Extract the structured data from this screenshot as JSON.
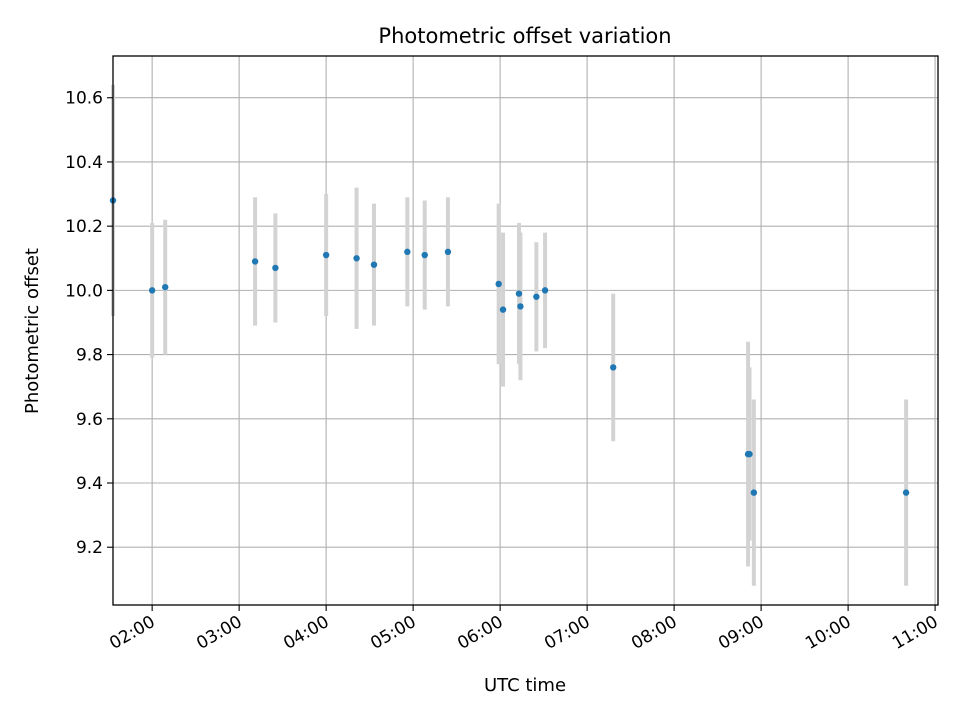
{
  "chart_data": {
    "type": "scatter",
    "title": "Photometric offset variation",
    "xlabel": "UTC time",
    "ylabel": "Photometric offset",
    "x_unit": "UTC time of day (HH:MM)",
    "xlim": [
      "01:33",
      "11:02"
    ],
    "ylim": [
      9.02,
      10.73
    ],
    "x_ticks": [
      "02:00",
      "03:00",
      "04:00",
      "05:00",
      "06:00",
      "07:00",
      "08:00",
      "09:00",
      "10:00",
      "11:00"
    ],
    "y_ticks": [
      "9.2",
      "9.4",
      "9.6",
      "9.8",
      "10.0",
      "10.2",
      "10.4",
      "10.6"
    ],
    "grid": true,
    "legend": "none",
    "colors": {
      "points": "#1f77b4",
      "errorbars": "#d3d3d3",
      "grid": "#b0b0b0"
    },
    "series": [
      {
        "x": [
          "01:33",
          "02:00",
          "02:09",
          "03:11",
          "03:25",
          "04:00",
          "04:21",
          "04:33",
          "04:56",
          "05:08",
          "05:24",
          "05:59",
          "06:02",
          "06:13",
          "06:14",
          "06:25",
          "06:31",
          "07:18",
          "08:51",
          "08:52",
          "08:55",
          "10:40"
        ],
        "y": [
          10.28,
          10.0,
          10.01,
          10.09,
          10.07,
          10.11,
          10.1,
          10.08,
          10.12,
          10.11,
          10.12,
          10.02,
          9.94,
          9.99,
          9.95,
          9.98,
          10.0,
          9.76,
          9.49,
          9.49,
          9.37,
          9.37
        ],
        "err": [
          0.36,
          0.21,
          0.21,
          0.2,
          0.17,
          0.19,
          0.22,
          0.19,
          0.17,
          0.17,
          0.17,
          0.25,
          0.24,
          0.22,
          0.23,
          0.17,
          0.18,
          0.23,
          0.35,
          0.27,
          0.29,
          0.29
        ]
      }
    ]
  }
}
